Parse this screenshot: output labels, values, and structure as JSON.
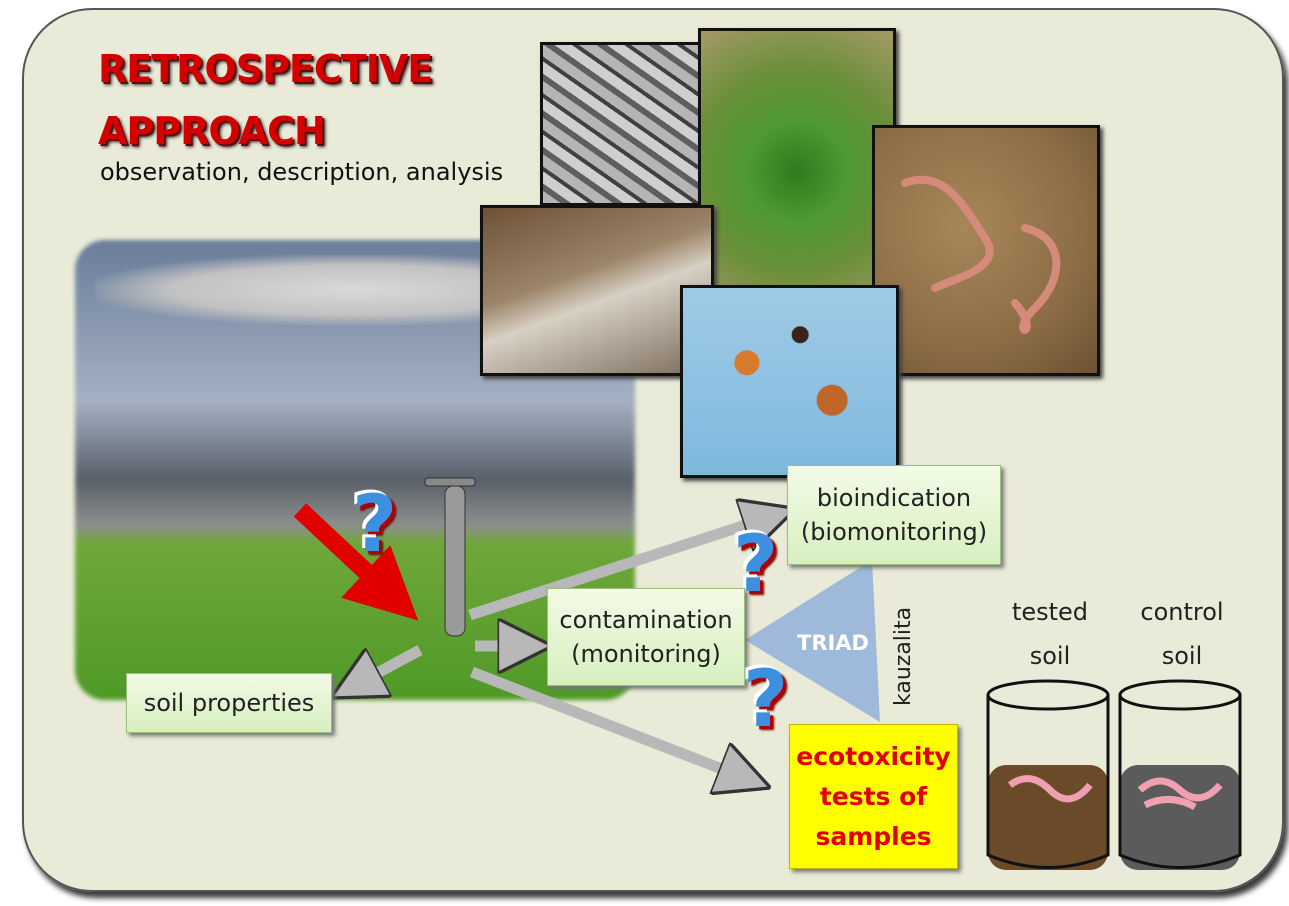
{
  "title": {
    "lines": [
      "RETROSPECTIVE",
      "APPROACH"
    ]
  },
  "subtitle": "observation, description, analysis",
  "nodes": [
    {
      "label": [
        "bioindication",
        "(biomonitoring)"
      ]
    },
    {
      "label": [
        "contamination",
        "(monitoring)"
      ]
    },
    {
      "label": [
        "soil properties"
      ]
    },
    {
      "label": [
        "ecotoxicity",
        "tests of",
        "samples"
      ]
    }
  ],
  "triad": "TRIAD",
  "causality": "kauzalita",
  "soils": [
    {
      "label": [
        "tested",
        "soil"
      ]
    },
    {
      "label": [
        "control",
        "soil"
      ]
    }
  ],
  "question_marks": [
    "?",
    "?",
    "?"
  ]
}
